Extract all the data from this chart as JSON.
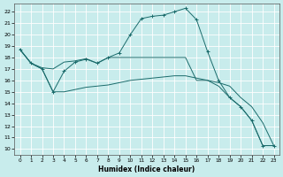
{
  "xlabel": "Humidex (Indice chaleur)",
  "background_color": "#c8ecec",
  "grid_color": "#aad8d8",
  "line_color": "#1a6b6b",
  "xlim": [
    -0.5,
    23.5
  ],
  "ylim": [
    9.5,
    22.7
  ],
  "yticks": [
    10,
    11,
    12,
    13,
    14,
    15,
    16,
    17,
    18,
    19,
    20,
    21,
    22
  ],
  "xticks": [
    0,
    1,
    2,
    3,
    4,
    5,
    6,
    7,
    8,
    9,
    10,
    11,
    12,
    13,
    14,
    15,
    16,
    17,
    18,
    19,
    20,
    21,
    22,
    23
  ],
  "line1_x": [
    0,
    1,
    2,
    3,
    4,
    5,
    6,
    7,
    8,
    9,
    10,
    11,
    12,
    13,
    14,
    15,
    16,
    17,
    18,
    19,
    20,
    21,
    22,
    23
  ],
  "line1_y": [
    18.7,
    17.5,
    17.0,
    15.0,
    15.0,
    15.2,
    15.4,
    15.5,
    15.6,
    15.8,
    16.0,
    16.1,
    16.2,
    16.3,
    16.4,
    16.4,
    16.2,
    16.0,
    15.8,
    15.5,
    14.5,
    13.7,
    12.3,
    10.3
  ],
  "line2_x": [
    0,
    1,
    2,
    3,
    4,
    5,
    6,
    7,
    8,
    9,
    10,
    11,
    12,
    13,
    14,
    15,
    16,
    17,
    18,
    19,
    20,
    21,
    22,
    23
  ],
  "line2_y": [
    18.7,
    17.5,
    17.1,
    17.0,
    17.6,
    17.7,
    17.9,
    17.5,
    18.0,
    18.0,
    18.0,
    18.0,
    18.0,
    18.0,
    18.0,
    18.0,
    16.0,
    16.0,
    15.5,
    14.5,
    13.7,
    12.5,
    10.3,
    10.3
  ],
  "line3_x": [
    0,
    1,
    2,
    3,
    4,
    5,
    6,
    7,
    8,
    9,
    10,
    11,
    12,
    13,
    14,
    15,
    16,
    17,
    18,
    19,
    20,
    21,
    22,
    23
  ],
  "line3_y": [
    18.7,
    17.5,
    17.0,
    15.0,
    16.8,
    17.6,
    17.85,
    17.5,
    18.0,
    18.4,
    20.0,
    21.4,
    21.6,
    21.7,
    22.0,
    22.3,
    21.3,
    18.5,
    16.0,
    14.5,
    13.7,
    12.5,
    10.3,
    10.3
  ]
}
